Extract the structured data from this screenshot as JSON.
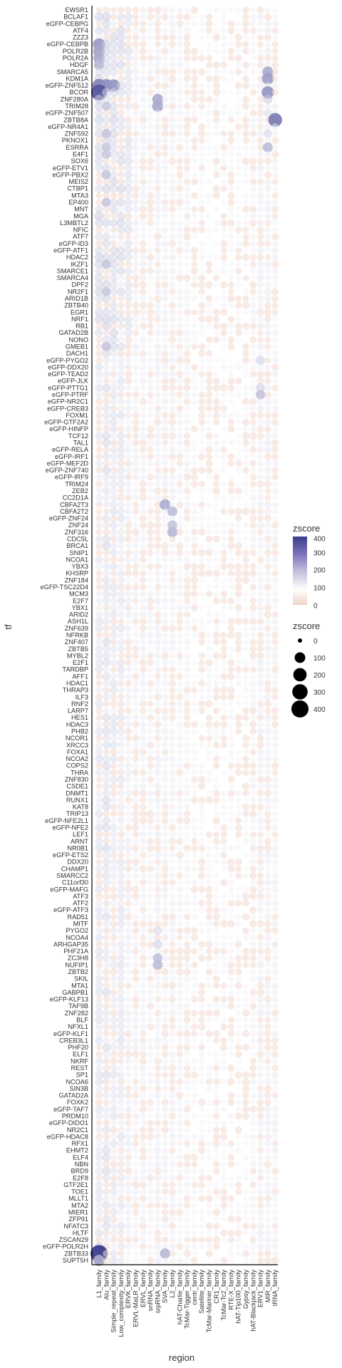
{
  "chart_data": {
    "type": "bubble-heatmap",
    "xlabel": "region",
    "ylabel": "tf",
    "x_categories": [
      "L1_family",
      "Alu_family",
      "Simple_repeat_family",
      "Low_complexity_family",
      "ERVK_family",
      "ERVL-MaLR_family",
      "ERVL_family",
      "snRNA_family",
      "srpRNA_family",
      "SVA_family",
      "L2_family",
      "hAT-Charlie_family",
      "TcMar-Tigger_family",
      "centr_family",
      "Satellite_family",
      "TcMar-Mariner_family",
      "CR1_family",
      "TcMar-Tc2_family",
      "RTE-X_family",
      "hAT-Tip100_family",
      "Gypsy_family",
      "hAT-Blackjack_family",
      "ERV1_family",
      "MIR_family",
      "tRNA_family"
    ],
    "y_categories": [
      "EWSR1",
      "BCLAF1",
      "eGFP-CEBPG",
      "ATF4",
      "ZZZ3",
      "eGFP-CEBPB",
      "POLR2B",
      "POLR2A",
      "HDGF",
      "SMARCA5",
      "KDM1A",
      "eGFP-ZNF512",
      "BCOR",
      "ZNF280A",
      "TRIM28",
      "eGFP-ZNF507",
      "ZBTB8A",
      "eGFP-NR4A1",
      "ZNF592",
      "PKNOX1",
      "ESRRA",
      "E4F1",
      "SOX6",
      "eGFP-ETV1",
      "eGFP-PBX2",
      "MEIS2",
      "CTBP1",
      "MTA3",
      "EP400",
      "MNT",
      "MGA",
      "L3MBTL2",
      "NFIC",
      "ATF7",
      "eGFP-ID3",
      "eGFP-ATF1",
      "HDAC2",
      "IKZF1",
      "SMARCE1",
      "SMARCA4",
      "DPF2",
      "NR2F1",
      "ARID1B",
      "ZBTB40",
      "EGR1",
      "NRF1",
      "RB1",
      "GATAD2B",
      "NONO",
      "GMEB1",
      "DACH1",
      "eGFP-PYGO2",
      "eGFP-DDX20",
      "eGFP-TEAD2",
      "eGFP-JLK",
      "eGFP-PTTG1",
      "eGFP-PTRF",
      "eGFP-NR2C1",
      "eGFP-CREB3",
      "FOXM1",
      "eGFP-GTF2A2",
      "eGFP-HINFP",
      "TCF12",
      "TAL1",
      "eGFP-RELA",
      "eGFP-IRF1",
      "eGFP-MEF2D",
      "eGFP-ZNF740",
      "eGFP-IRF9",
      "TRIM24",
      "ZEB2",
      "CC2D1A",
      "CBFA2T3",
      "CBFA2T2",
      "eGFP-ZNF24",
      "ZNF24",
      "ZNF316",
      "CDC5L",
      "BRCA1",
      "SNIP1",
      "NCOA1",
      "YBX3",
      "KHSRP",
      "ZNF184",
      "eGFP-TSC22D4",
      "MCM3",
      "E2F7",
      "YBX1",
      "ARID2",
      "ASH1L",
      "ZNF639",
      "NFRKB",
      "ZNF407",
      "ZBTB5",
      "MYBL2",
      "E2F1",
      "TARDBP",
      "AFF1",
      "HDAC1",
      "THRAP3",
      "ILF3",
      "RNF2",
      "LARP7",
      "HES1",
      "HDAC3",
      "PHB2",
      "NCOR1",
      "XRCC3",
      "FOXA1",
      "NCOA2",
      "COPS2",
      "THRA",
      "ZNF830",
      "CSDE1",
      "DNMT1",
      "RUNX1",
      "KAT8",
      "TRIP13",
      "eGFP-NFE2L1",
      "eGFP-NFE2",
      "LEF1",
      "ARNT",
      "NR0B1",
      "eGFP-ETS2",
      "DDX20",
      "CHAMP1",
      "SMARCC2",
      "C11orf30",
      "eGFP-MAFG",
      "ATF3",
      "ATF2",
      "eGFP-ATF3",
      "RAD51",
      "MITF",
      "PYGO2",
      "NCOA4",
      "ARHGAP35",
      "PHF21A",
      "ZC3H8",
      "NUFIP1",
      "ZBTB2",
      "SKIL",
      "MTA1",
      "GABPB1",
      "eGFP-KLF13",
      "TAF9B",
      "ZNF282",
      "BLF",
      "NFXL1",
      "eGFP-KLF1",
      "CREB3L1",
      "PHF20",
      "ELF1",
      "NKRF",
      "REST",
      "SP1",
      "NCOA6",
      "SIN3B",
      "GATAD2A",
      "FOXK2",
      "eGFP-TAF7",
      "PRDM10",
      "eGFP-DIDO1",
      "NR2C1",
      "eGFP-HDAC8",
      "RFX1",
      "EHMT2",
      "ELF4",
      "NBN",
      "BRD9",
      "E2F8",
      "GTF2E1",
      "TOE1",
      "MLLT1",
      "MTA2",
      "MIER1",
      "ZFP91",
      "NFATC3",
      "HLTF",
      "ZSCAN29",
      "eGFP-POLR2H",
      "ZBTB33",
      "SUPT5H"
    ],
    "values_note": "",
    "highlights": [
      {
        "tf": "BCOR",
        "region": "L1_family",
        "zscore": 320
      },
      {
        "tf": "eGFP-ZNF512",
        "region": "L1_family",
        "zscore": 200
      },
      {
        "tf": "eGFP-ZNF512",
        "region": "Alu_family",
        "zscore": 180
      },
      {
        "tf": "eGFP-ZNF512",
        "region": "Simple_repeat_family",
        "zscore": 160
      },
      {
        "tf": "eGFP-CEBPB",
        "region": "L1_family",
        "zscore": 150
      },
      {
        "tf": "POLR2B",
        "region": "L1_family",
        "zscore": 130
      },
      {
        "tf": "POLR2A",
        "region": "L1_family",
        "zscore": 120
      },
      {
        "tf": "HDGF",
        "region": "L1_family",
        "zscore": 90
      },
      {
        "tf": "ZBTB8A",
        "region": "tRNA_family",
        "zscore": 220
      },
      {
        "tf": "BCOR",
        "region": "MIR_family",
        "zscore": 160
      },
      {
        "tf": "KDM1A",
        "region": "MIR_family",
        "zscore": 140
      },
      {
        "tf": "SMARCA5",
        "region": "MIR_family",
        "zscore": 110
      },
      {
        "tf": "ESRRA",
        "region": "MIR_family",
        "zscore": 80
      },
      {
        "tf": "ZNF280A",
        "region": "srpRNA_family",
        "zscore": 110
      },
      {
        "tf": "TRIM28",
        "region": "srpRNA_family",
        "zscore": 120
      },
      {
        "tf": "ZBTB33",
        "region": "L1_family",
        "zscore": 400
      },
      {
        "tf": "SUPT5H",
        "region": "L1_family",
        "zscore": 120
      },
      {
        "tf": "eGFP-POLR2H",
        "region": "L1_family",
        "zscore": 60
      },
      {
        "tf": "ZBTB33",
        "region": "SVA_family",
        "zscore": 90
      },
      {
        "tf": "CBFA2T3",
        "region": "SVA_family",
        "zscore": 110
      },
      {
        "tf": "ZNF24",
        "region": "L2_family",
        "zscore": 70
      },
      {
        "tf": "ZNF316",
        "region": "L2_family",
        "zscore": 90
      },
      {
        "tf": "CBFA2T2",
        "region": "L2_family",
        "zscore": 80
      },
      {
        "tf": "ZNF280A",
        "region": "MIR_family",
        "zscore": 60
      },
      {
        "tf": "PYGO2",
        "region": "srpRNA_family",
        "zscore": 50
      },
      {
        "tf": "ARHGAP35",
        "region": "srpRNA_family",
        "zscore": 60
      },
      {
        "tf": "ZC3H8",
        "region": "srpRNA_family",
        "zscore": 70
      },
      {
        "tf": "NUFIP1",
        "region": "srpRNA_family",
        "zscore": 80
      },
      {
        "tf": "eGFP-PTRF",
        "region": "ERV1_family",
        "zscore": 70
      },
      {
        "tf": "eGFP-PTTG1",
        "region": "ERV1_family",
        "zscore": 60
      },
      {
        "tf": "eGFP-PYGO2",
        "region": "ERV1_family",
        "zscore": 60
      },
      {
        "tf": "ZNF592",
        "region": "MIR_family",
        "zscore": 50
      },
      {
        "tf": "eGFP-ZNF507",
        "region": "MIR_family",
        "zscore": 40
      }
    ],
    "legend_color": {
      "title": "zscore",
      "ticks": [
        400,
        300,
        200,
        100,
        0
      ],
      "colors": [
        "#3b3b8c",
        "#7a72b8",
        "#c2bcdc",
        "#ffffff",
        "#f0d2c6"
      ],
      "placement": "right"
    },
    "legend_size": {
      "title": "zscore",
      "ticks": [
        0,
        100,
        200,
        300,
        400
      ],
      "placement": "right"
    },
    "grid": false
  }
}
